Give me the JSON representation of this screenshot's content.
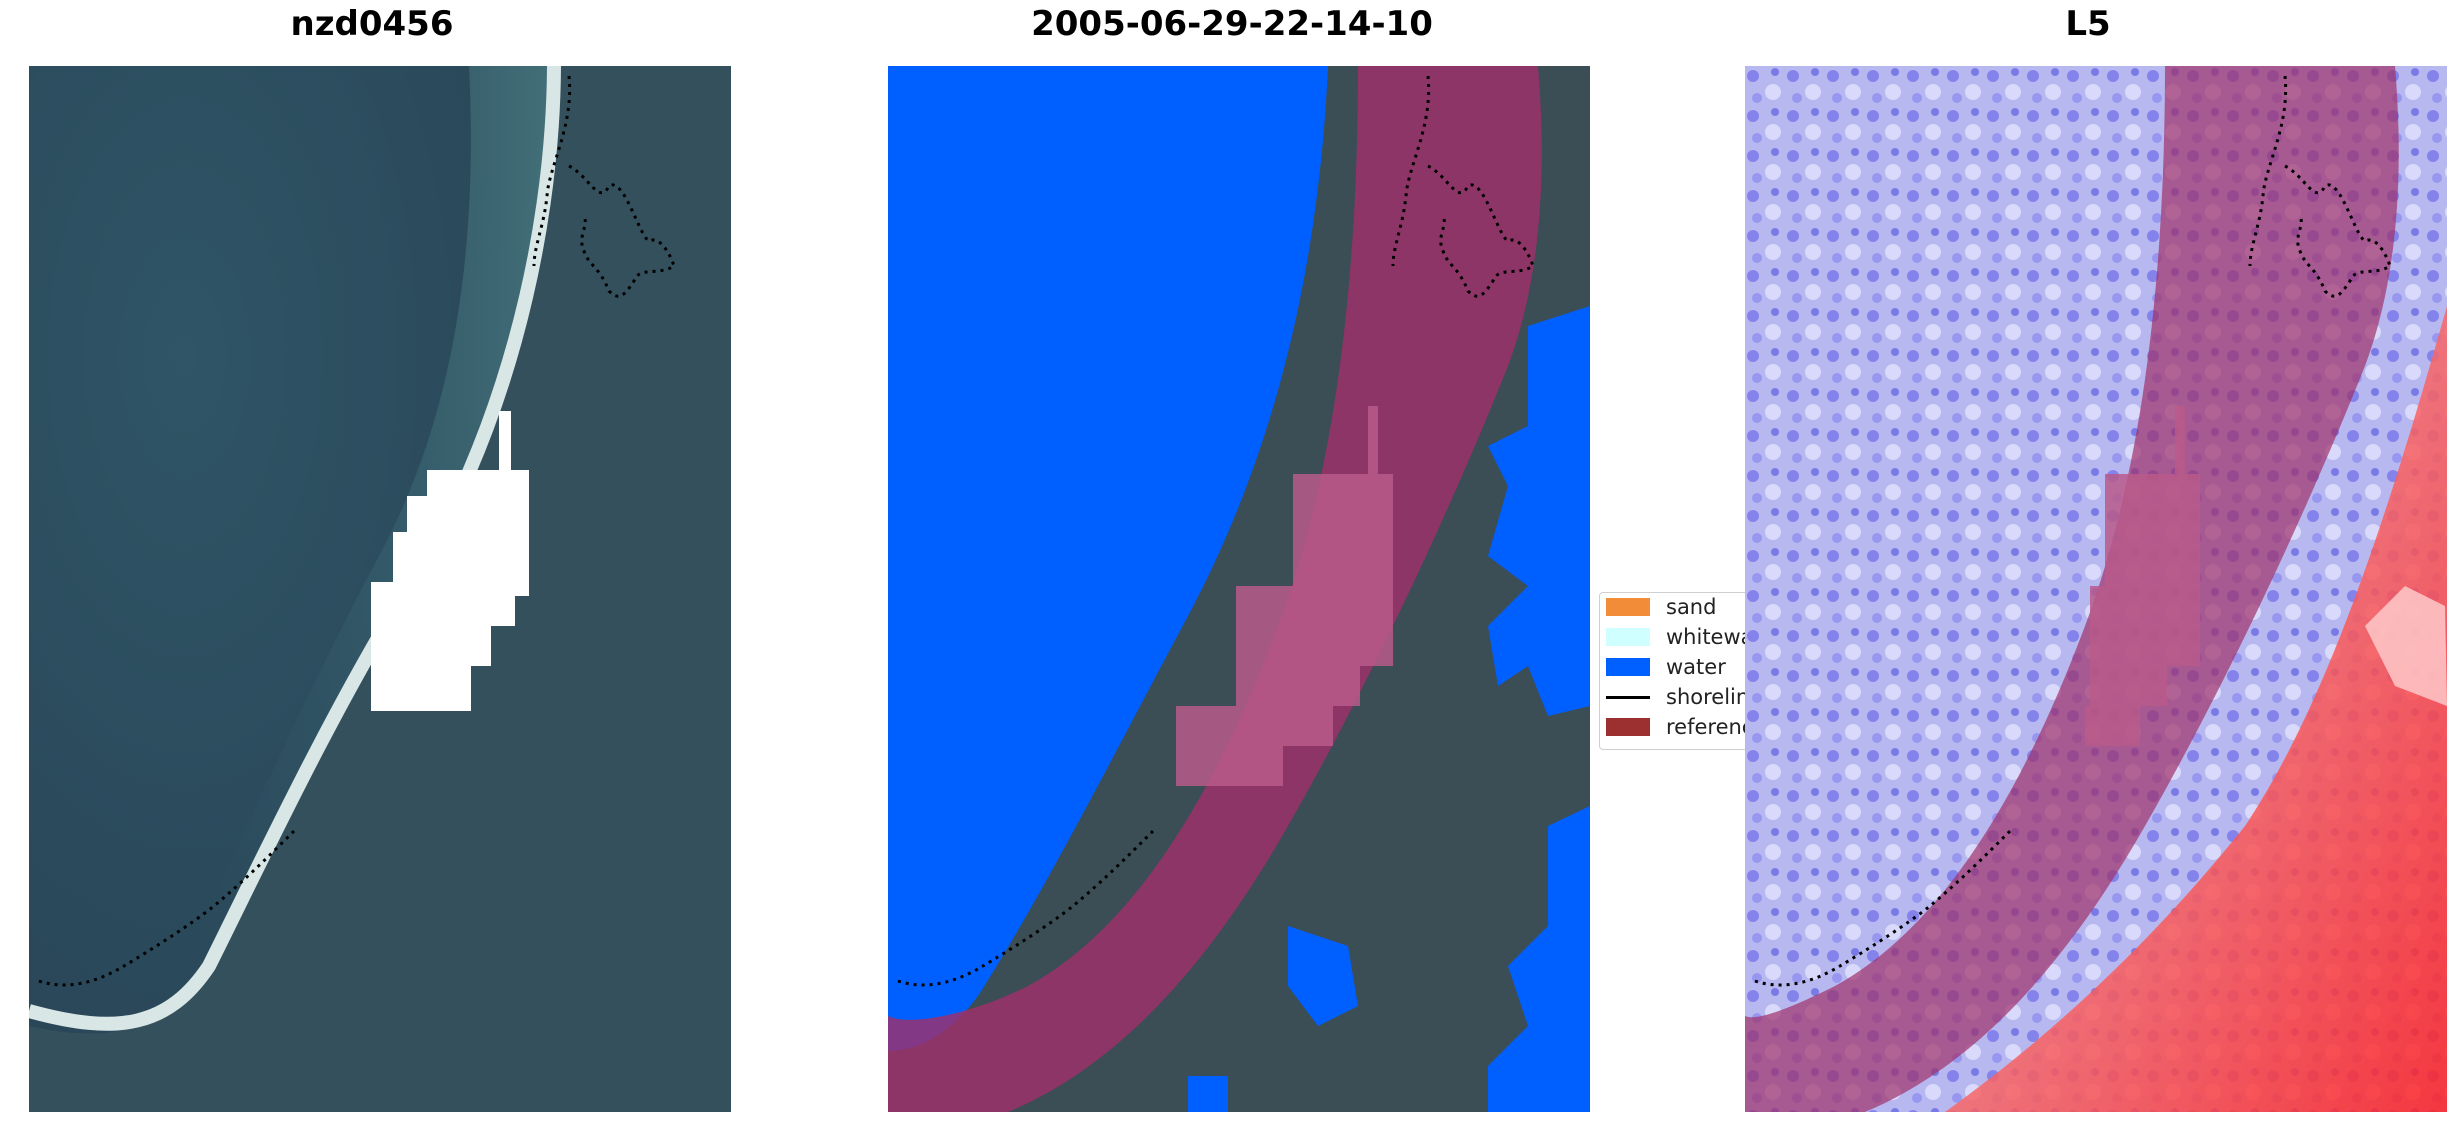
{
  "panels": [
    {
      "title": "nzd0456"
    },
    {
      "title": "2005-06-29-22-14-10"
    },
    {
      "title": "L5"
    }
  ],
  "legend": {
    "items": [
      {
        "label": "sand",
        "color": "#f28c38",
        "kind": "patch"
      },
      {
        "label": "whitewa",
        "color": "#cfffff",
        "kind": "patch"
      },
      {
        "label": "water",
        "color": "#0060ff",
        "kind": "patch"
      },
      {
        "label": "shorelin",
        "color": "#000000",
        "kind": "line"
      },
      {
        "label": "referenc",
        "color": "#9c2f2f",
        "kind": "patch"
      }
    ]
  },
  "colors": {
    "reference_overlay": "#a0306a",
    "water_class": "#0060ff",
    "imagery_ocean": "#2e4e63",
    "imagery_land": "#3a4d56",
    "shoreline_dots": "#000000"
  }
}
